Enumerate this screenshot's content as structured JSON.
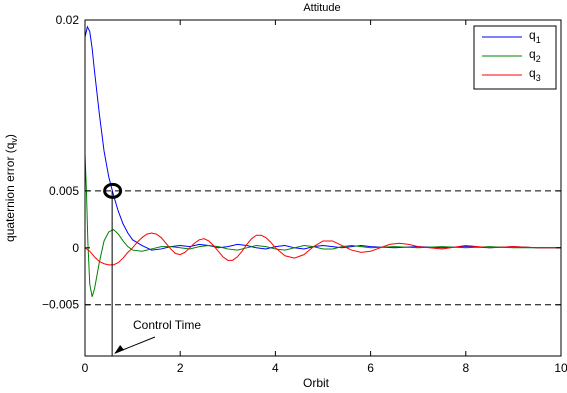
{
  "chart_data": {
    "type": "line",
    "title": "Attitude",
    "xlabel": "Orbit",
    "ylabel": "quaternion error (q_v)",
    "xlim": [
      0,
      10
    ],
    "ylim": [
      -0.0095,
      0.02
    ],
    "grid": false,
    "legend_position": "top-right",
    "x_ticks": [
      0,
      2,
      4,
      6,
      8,
      10
    ],
    "x_tick_labels": [
      "0",
      "2",
      "4",
      "6",
      "8",
      "10"
    ],
    "y_ticks": [
      -0.005,
      0,
      0.005,
      0.02
    ],
    "y_tick_labels": [
      "−0.005",
      "0",
      "0.005",
      "0.02"
    ],
    "reference_lines": [
      0.005,
      -0.005
    ],
    "control_time": 0.57,
    "annotation": "Control Time",
    "series": [
      {
        "name": "q1",
        "label_main": "q",
        "label_sub": "1",
        "color": "#0000ff",
        "x": [
          0,
          0.05,
          0.1,
          0.15,
          0.2,
          0.3,
          0.4,
          0.5,
          0.6,
          0.7,
          0.8,
          0.9,
          1.0,
          1.2,
          1.4,
          1.6,
          1.8,
          2.0,
          2.2,
          2.4,
          2.6,
          2.8,
          3.0,
          3.2,
          3.4,
          3.6,
          3.8,
          4.0,
          4.2,
          4.4,
          4.6,
          4.8,
          5.0,
          5.2,
          5.4,
          5.6,
          5.8,
          6.0,
          6.5,
          7.0,
          7.5,
          8.0,
          8.5,
          9.0,
          9.5,
          10.0
        ],
        "y": [
          0.0185,
          0.0194,
          0.019,
          0.0175,
          0.0155,
          0.0118,
          0.0085,
          0.0062,
          0.0046,
          0.0032,
          0.0021,
          0.0013,
          0.0007,
          0.0002,
          -0.0002,
          -0.0001,
          0.0001,
          0.0002,
          0.0001,
          0.0003,
          0.0002,
          0.0,
          0.0001,
          0.0003,
          0.0002,
          0.0,
          -0.0001,
          0.0001,
          0.0002,
          0.0,
          -0.0001,
          0.0001,
          0.0002,
          0.0001,
          0.0,
          0.0001,
          0.0002,
          0.0001,
          0.0,
          0.0001,
          0.0,
          0.0001,
          0.0,
          0.0001,
          0.0,
          0.0
        ]
      },
      {
        "name": "q2",
        "label_main": "q",
        "label_sub": "2",
        "color": "#008000",
        "x": [
          0,
          0.03,
          0.06,
          0.1,
          0.15,
          0.2,
          0.3,
          0.4,
          0.5,
          0.6,
          0.7,
          0.8,
          0.9,
          1.0,
          1.2,
          1.4,
          1.6,
          1.8,
          2.0,
          2.2,
          2.4,
          2.6,
          2.8,
          3.0,
          3.2,
          3.4,
          3.6,
          3.8,
          4.0,
          4.2,
          4.4,
          4.6,
          4.8,
          5.0,
          5.2,
          5.4,
          5.6,
          5.8,
          6.0,
          6.5,
          7.0,
          7.5,
          8.0,
          8.5,
          9.0,
          9.5,
          10.0
        ],
        "y": [
          0.0082,
          0.005,
          0.0005,
          -0.0032,
          -0.0043,
          -0.0036,
          -0.0013,
          0.0006,
          0.0014,
          0.0016,
          0.0012,
          0.0006,
          0.0001,
          -0.0002,
          -0.0003,
          -0.0001,
          0.0001,
          0.0001,
          0.0,
          -0.0001,
          0.0001,
          0.0002,
          0.0001,
          -0.0001,
          -0.0002,
          0.0,
          0.0002,
          0.0001,
          -0.0001,
          -0.0002,
          0.0,
          0.0002,
          0.0001,
          -0.0001,
          -0.0001,
          0.0001,
          0.0002,
          0.0001,
          0.0,
          0.0001,
          0.0,
          0.0001,
          0.0,
          0.0001,
          0.0,
          0.0,
          0.0
        ]
      },
      {
        "name": "q3",
        "label_main": "q",
        "label_sub": "3",
        "color": "#ff0000",
        "x": [
          0,
          0.1,
          0.2,
          0.3,
          0.4,
          0.5,
          0.6,
          0.7,
          0.8,
          0.9,
          1.0,
          1.1,
          1.2,
          1.3,
          1.4,
          1.5,
          1.6,
          1.7,
          1.8,
          1.9,
          2.0,
          2.1,
          2.2,
          2.3,
          2.4,
          2.5,
          2.6,
          2.7,
          2.8,
          2.9,
          3.0,
          3.1,
          3.2,
          3.3,
          3.4,
          3.5,
          3.6,
          3.7,
          3.8,
          3.9,
          4.0,
          4.2,
          4.4,
          4.6,
          4.8,
          5.0,
          5.2,
          5.4,
          5.6,
          5.8,
          6.0,
          6.2,
          6.4,
          6.6,
          6.8,
          7.0,
          7.5,
          8.0,
          8.5,
          9.0,
          9.5,
          10.0
        ],
        "y": [
          0.0,
          -0.0003,
          -0.0008,
          -0.0012,
          -0.0014,
          -0.0015,
          -0.0015,
          -0.0013,
          -0.0009,
          -0.0004,
          0.0,
          0.0005,
          0.0009,
          0.0012,
          0.0013,
          0.0012,
          0.0009,
          0.0004,
          -0.0001,
          -0.0005,
          -0.0006,
          -0.0004,
          0.0,
          0.0004,
          0.0007,
          0.0008,
          0.0006,
          0.0002,
          -0.0003,
          -0.0008,
          -0.0011,
          -0.0011,
          -0.0008,
          -0.0003,
          0.0003,
          0.0008,
          0.0011,
          0.0011,
          0.0009,
          0.0005,
          0.0,
          -0.0007,
          -0.0009,
          -0.0006,
          0.0001,
          0.0006,
          0.0006,
          0.0002,
          -0.0002,
          -0.0004,
          -0.0003,
          0.0,
          0.0003,
          0.0004,
          0.0003,
          0.0001,
          -0.0001,
          0.0002,
          0.0,
          0.0001,
          0.0,
          0.0
        ]
      }
    ]
  }
}
